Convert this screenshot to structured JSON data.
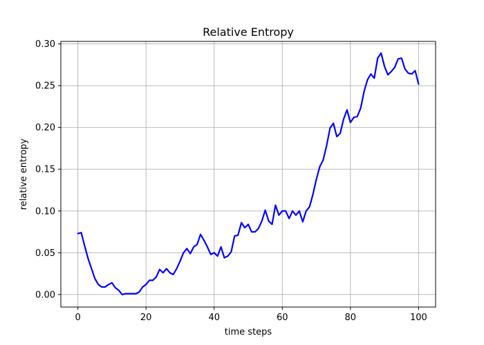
{
  "chart_data": {
    "type": "line",
    "title": "Relative Entropy",
    "xlabel": "time steps",
    "ylabel": "relative entropy",
    "xlim": [
      -5,
      105
    ],
    "ylim": [
      -0.015,
      0.303
    ],
    "xticks": [
      0,
      20,
      40,
      60,
      80,
      100
    ],
    "yticks": [
      0.0,
      0.05,
      0.1,
      0.15,
      0.2,
      0.25,
      0.3
    ],
    "xtick_labels": [
      "0",
      "20",
      "40",
      "60",
      "80",
      "100"
    ],
    "ytick_labels": [
      "0.00",
      "0.05",
      "0.10",
      "0.15",
      "0.20",
      "0.25",
      "0.30"
    ],
    "grid": true,
    "series": [
      {
        "name": "relative entropy",
        "color": "#0000ff",
        "x": [
          0,
          1,
          2,
          3,
          4,
          5,
          6,
          7,
          8,
          9,
          10,
          11,
          12,
          13,
          14,
          15,
          16,
          17,
          18,
          19,
          20,
          21,
          22,
          23,
          24,
          25,
          26,
          27,
          28,
          29,
          30,
          31,
          32,
          33,
          34,
          35,
          36,
          37,
          38,
          39,
          40,
          41,
          42,
          43,
          44,
          45,
          46,
          47,
          48,
          49,
          50,
          51,
          52,
          53,
          54,
          55,
          56,
          57,
          58,
          59,
          60,
          61,
          62,
          63,
          64,
          65,
          66,
          67,
          68,
          69,
          70,
          71,
          72,
          73,
          74,
          75,
          76,
          77,
          78,
          79,
          80,
          81,
          82,
          83,
          84,
          85,
          86,
          87,
          88,
          89,
          90,
          91,
          92,
          93,
          94,
          95,
          96,
          97,
          98,
          99,
          100
        ],
        "values": [
          0.073,
          0.074,
          0.058,
          0.043,
          0.031,
          0.019,
          0.012,
          0.009,
          0.009,
          0.012,
          0.014,
          0.008,
          0.005,
          0.0,
          0.001,
          0.001,
          0.001,
          0.001,
          0.003,
          0.009,
          0.012,
          0.017,
          0.017,
          0.021,
          0.03,
          0.026,
          0.031,
          0.026,
          0.024,
          0.031,
          0.04,
          0.05,
          0.055,
          0.049,
          0.057,
          0.06,
          0.072,
          0.065,
          0.057,
          0.048,
          0.05,
          0.046,
          0.057,
          0.044,
          0.046,
          0.051,
          0.07,
          0.071,
          0.086,
          0.08,
          0.084,
          0.075,
          0.075,
          0.079,
          0.088,
          0.101,
          0.088,
          0.084,
          0.107,
          0.095,
          0.1,
          0.1,
          0.091,
          0.1,
          0.095,
          0.1,
          0.087,
          0.1,
          0.105,
          0.12,
          0.138,
          0.153,
          0.161,
          0.178,
          0.199,
          0.205,
          0.189,
          0.193,
          0.21,
          0.221,
          0.206,
          0.212,
          0.213,
          0.223,
          0.243,
          0.257,
          0.264,
          0.259,
          0.283,
          0.289,
          0.273,
          0.263,
          0.267,
          0.272,
          0.282,
          0.283,
          0.27,
          0.265,
          0.264,
          0.268,
          0.252
        ]
      }
    ]
  }
}
